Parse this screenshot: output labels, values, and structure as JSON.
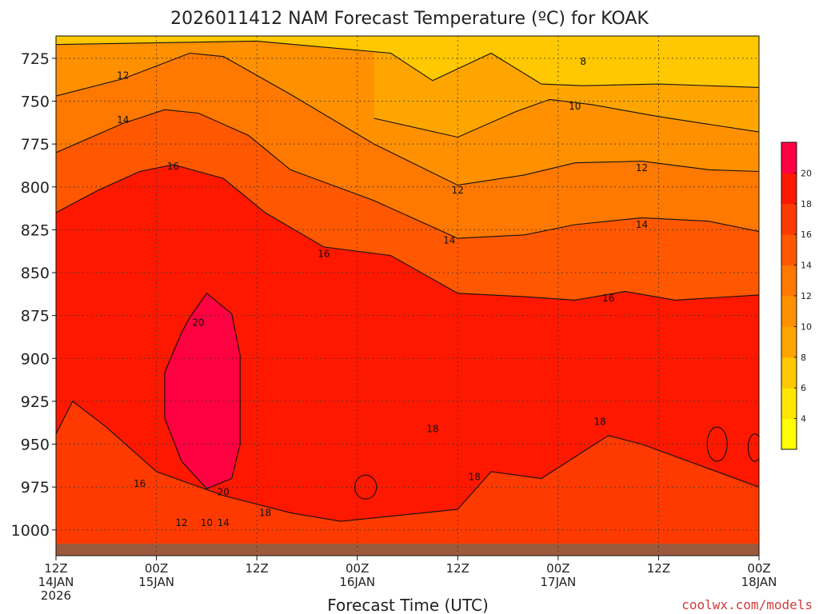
{
  "chart_data": {
    "type": "heatmap",
    "title": "2026011412 NAM Forecast Temperature (ºC) for KOAK",
    "xlabel": "Forecast Time (UTC)",
    "ylabel": "",
    "credit": "coolwx.com/models",
    "y_axis": {
      "unit": "hPa",
      "ticks": [
        725,
        750,
        775,
        800,
        825,
        850,
        875,
        900,
        925,
        950,
        975,
        1000
      ],
      "range": [
        712,
        1015
      ],
      "inverted": true
    },
    "x_axis": {
      "range_hours": [
        0,
        84
      ],
      "ticks": [
        {
          "h": 0,
          "line1": "12Z",
          "line2": "14JAN",
          "line3": "2026"
        },
        {
          "h": 12,
          "line1": "00Z",
          "line2": "15JAN",
          "line3": ""
        },
        {
          "h": 24,
          "line1": "12Z",
          "line2": "",
          "line3": ""
        },
        {
          "h": 36,
          "line1": "00Z",
          "line2": "16JAN",
          "line3": ""
        },
        {
          "h": 48,
          "line1": "12Z",
          "line2": "",
          "line3": ""
        },
        {
          "h": 60,
          "line1": "00Z",
          "line2": "17JAN",
          "line3": ""
        },
        {
          "h": 72,
          "line1": "12Z",
          "line2": "",
          "line3": ""
        },
        {
          "h": 84,
          "line1": "00Z",
          "line2": "18JAN",
          "line3": ""
        }
      ]
    },
    "grid": true,
    "colorbar": {
      "ticks": [
        4,
        6,
        8,
        10,
        12,
        14,
        16,
        18,
        20
      ],
      "levels": [
        2,
        4,
        6,
        8,
        10,
        12,
        14,
        16,
        18,
        20,
        22
      ],
      "colors": [
        "#FFFF00",
        "#FFE600",
        "#FFC800",
        "#FFA500",
        "#FF9000",
        "#FF7800",
        "#FF5800",
        "#FF3A00",
        "#FF1800",
        "#FF0040"
      ]
    },
    "contours": [
      {
        "value": 8,
        "points": [
          [
            0,
            717
          ],
          [
            24,
            715
          ],
          [
            40,
            722
          ],
          [
            45,
            738
          ],
          [
            52,
            722
          ],
          [
            58,
            740
          ],
          [
            63,
            741
          ],
          [
            72,
            740
          ],
          [
            84,
            742
          ]
        ]
      },
      {
        "value": 10,
        "points": [
          [
            38,
            760
          ],
          [
            48,
            771
          ],
          [
            55,
            756
          ],
          [
            59,
            749
          ],
          [
            64,
            752
          ],
          [
            72,
            759
          ],
          [
            84,
            768
          ]
        ]
      },
      {
        "value": 12,
        "points": [
          [
            0,
            747
          ],
          [
            8,
            737
          ],
          [
            16,
            722
          ],
          [
            20,
            724
          ],
          [
            28,
            746
          ],
          [
            38,
            775
          ],
          [
            48,
            799
          ],
          [
            56,
            793
          ],
          [
            62,
            786
          ],
          [
            70,
            785
          ],
          [
            78,
            790
          ],
          [
            84,
            791
          ]
        ]
      },
      {
        "value": 14,
        "points": [
          [
            0,
            780
          ],
          [
            8,
            763
          ],
          [
            13,
            755
          ],
          [
            17,
            757
          ],
          [
            23,
            770
          ],
          [
            28,
            790
          ],
          [
            38,
            808
          ],
          [
            48,
            830
          ],
          [
            56,
            828
          ],
          [
            62,
            822
          ],
          [
            70,
            818
          ],
          [
            78,
            820
          ],
          [
            84,
            826
          ]
        ]
      },
      {
        "value": 16,
        "points": [
          [
            0,
            815
          ],
          [
            5,
            802
          ],
          [
            10,
            791
          ],
          [
            14,
            787
          ],
          [
            20,
            795
          ],
          [
            25,
            815
          ],
          [
            32,
            835
          ],
          [
            40,
            840
          ],
          [
            48,
            862
          ],
          [
            56,
            864
          ],
          [
            62,
            866
          ],
          [
            68,
            861
          ],
          [
            74,
            866
          ],
          [
            84,
            863
          ]
        ]
      },
      {
        "value": 18,
        "points": [
          [
            0,
            944
          ],
          [
            2,
            925
          ],
          [
            6,
            940
          ],
          [
            12,
            966
          ],
          [
            20,
            980
          ],
          [
            28,
            990
          ],
          [
            34,
            995
          ],
          [
            40,
            992
          ],
          [
            48,
            988
          ],
          [
            52,
            966
          ],
          [
            58,
            970
          ],
          [
            66,
            945
          ],
          [
            70,
            950
          ],
          [
            84,
            975
          ]
        ]
      },
      {
        "value": 20,
        "points": [
          [
            18,
            862
          ],
          [
            21,
            874
          ],
          [
            22,
            898
          ],
          [
            22,
            950
          ],
          [
            21,
            970
          ],
          [
            18,
            976
          ],
          [
            15,
            960
          ],
          [
            13,
            935
          ],
          [
            13,
            908
          ],
          [
            15,
            885
          ],
          [
            16,
            876
          ],
          [
            18,
            862
          ]
        ]
      }
    ],
    "contour_labels": [
      {
        "text": "8",
        "h": 63,
        "p": 727
      },
      {
        "text": "10",
        "h": 62,
        "p": 753
      },
      {
        "text": "12",
        "h": 8,
        "p": 735
      },
      {
        "text": "12",
        "h": 48,
        "p": 802
      },
      {
        "text": "12",
        "h": 70,
        "p": 789
      },
      {
        "text": "12",
        "h": 15,
        "p": 996
      },
      {
        "text": "14",
        "h": 8,
        "p": 761
      },
      {
        "text": "14",
        "h": 47,
        "p": 831
      },
      {
        "text": "14",
        "h": 70,
        "p": 822
      },
      {
        "text": "14",
        "h": 20,
        "p": 996
      },
      {
        "text": "16",
        "h": 14,
        "p": 788
      },
      {
        "text": "16",
        "h": 32,
        "p": 839
      },
      {
        "text": "16",
        "h": 66,
        "p": 865
      },
      {
        "text": "16",
        "h": 10,
        "p": 973
      },
      {
        "text": "10",
        "h": 18,
        "p": 996
      },
      {
        "text": "18",
        "h": 45,
        "p": 941
      },
      {
        "text": "18",
        "h": 50,
        "p": 969
      },
      {
        "text": "18",
        "h": 65,
        "p": 937
      },
      {
        "text": "18",
        "h": 25,
        "p": 990
      },
      {
        "text": "20",
        "h": 17,
        "p": 879
      },
      {
        "text": "20",
        "h": 20,
        "p": 978
      }
    ],
    "small_contours": [
      {
        "value": 18,
        "center": [
          37,
          975
        ],
        "radius": [
          1.3,
          7
        ]
      },
      {
        "value": 18,
        "center": [
          79,
          950
        ],
        "radius": [
          1.2,
          10
        ]
      },
      {
        "value": 18,
        "center": [
          83.5,
          952
        ],
        "radius": [
          0.8,
          8
        ]
      }
    ],
    "surface_pressure_hpa": 1008
  }
}
